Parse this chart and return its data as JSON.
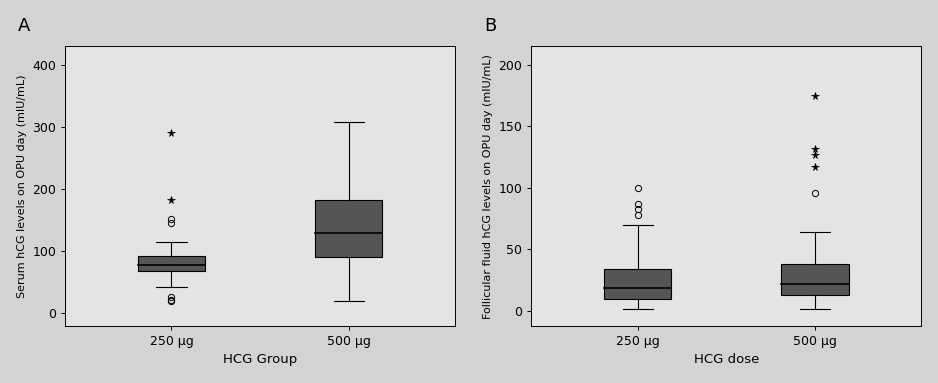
{
  "panel_A": {
    "label": "A",
    "xlabel": "HCG Group",
    "ylabel": "Serum hCG levels on OPU day (mIU/mL)",
    "ylim": [
      -20,
      430
    ],
    "yticks": [
      0,
      100,
      200,
      300,
      400
    ],
    "categories": [
      "250 μg",
      "500 μg"
    ],
    "boxes": [
      {
        "x": 1,
        "q1": 68,
        "median": 78,
        "q3": 93,
        "whisker_low": 42,
        "whisker_high": 115,
        "outliers_circle": [
          20,
          22,
          26,
          145,
          152
        ],
        "outliers_star": [
          182,
          290
        ]
      },
      {
        "x": 2,
        "q1": 90,
        "median": 130,
        "q3": 182,
        "whisker_low": 20,
        "whisker_high": 308,
        "outliers_circle": [],
        "outliers_star": []
      }
    ],
    "box_color": "#555555",
    "box_width": 0.38,
    "bg_color": "#e4e4e4",
    "fig_bg": "#d3d3d3"
  },
  "panel_B": {
    "label": "B",
    "xlabel": "HCG dose",
    "ylabel": "Follicular fluid hCG levels on OPU day (mIU/mL)",
    "ylim": [
      -12,
      215
    ],
    "yticks": [
      0,
      50,
      100,
      150,
      200
    ],
    "categories": [
      "250 μg",
      "500 μg"
    ],
    "boxes": [
      {
        "x": 1,
        "q1": 10,
        "median": 19,
        "q3": 34,
        "whisker_low": 2,
        "whisker_high": 70,
        "outliers_circle": [
          78,
          83,
          87,
          100
        ],
        "outliers_star": []
      },
      {
        "x": 2,
        "q1": 13,
        "median": 22,
        "q3": 38,
        "whisker_low": 2,
        "whisker_high": 64,
        "outliers_circle": [
          96
        ],
        "outliers_star": [
          117,
          127,
          132,
          175
        ]
      }
    ],
    "box_color": "#555555",
    "box_width": 0.38,
    "bg_color": "#e4e4e4",
    "fig_bg": "#d3d3d3"
  }
}
